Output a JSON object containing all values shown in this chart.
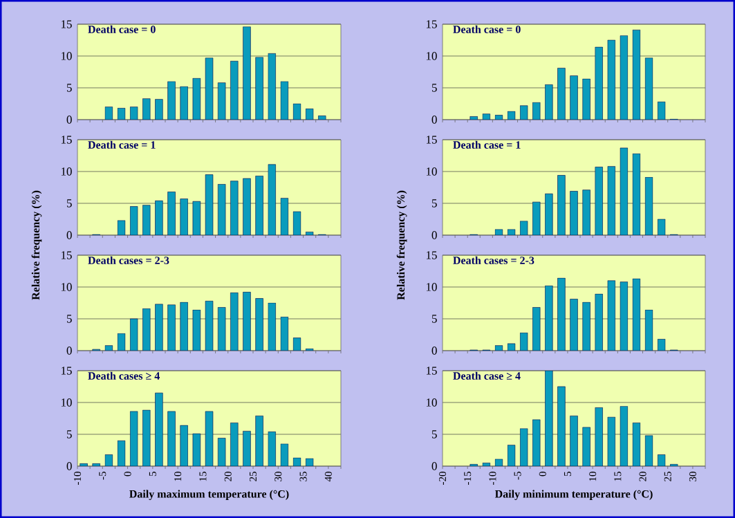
{
  "chart_data": [
    {
      "type": "histogram",
      "title": "Death case = 0",
      "bins": [
        -10,
        -7.5,
        -5,
        -2.5,
        0,
        2.5,
        5,
        7.5,
        10,
        12.5,
        15,
        17.5,
        20,
        22.5,
        25,
        27.5,
        30,
        32.5,
        35,
        37.5,
        40,
        42.5
      ],
      "values": [
        0,
        0,
        2.0,
        1.8,
        2.0,
        3.3,
        3.2,
        6.0,
        5.2,
        6.5,
        9.7,
        5.8,
        9.2,
        14.6,
        9.8,
        10.4,
        6.0,
        2.5,
        1.7,
        0.6,
        0
      ],
      "color": "#0a9cbc",
      "xlim": [
        -10,
        42.5
      ],
      "xticks": [
        -10,
        {
          "value": -7.5,
          "label": null
        },
        -5,
        {
          "value": -2.5,
          "label": null
        },
        0,
        {
          "value": 2.5,
          "label": null
        },
        5,
        {
          "value": 7.5,
          "label": null
        },
        10,
        {
          "value": 12.5,
          "label": null
        },
        15,
        {
          "value": 17.5,
          "label": null
        },
        20,
        {
          "value": 22.5,
          "label": null
        },
        25,
        {
          "value": 27.5,
          "label": null
        },
        30,
        {
          "value": 32.5,
          "label": null
        },
        35,
        {
          "value": 37.5,
          "label": null
        },
        40,
        {
          "value": 42.5,
          "label": null
        }
      ],
      "ylim": [
        0,
        15
      ],
      "yticks": [
        0,
        5,
        10,
        15
      ],
      "grid": "y",
      "tick_labels": "y"
    },
    {
      "type": "histogram",
      "title": "Death case = 0",
      "bins": [
        -20,
        -17.5,
        -15,
        -12.5,
        -10,
        -7.5,
        -5,
        -2.5,
        0,
        2.5,
        5,
        7.5,
        10,
        12.5,
        15,
        17.5,
        20,
        22.5,
        25,
        27.5,
        30,
        32.5
      ],
      "values": [
        0,
        0,
        0.5,
        0.9,
        0.7,
        1.3,
        2.2,
        2.7,
        5.5,
        8.1,
        6.9,
        6.4,
        11.4,
        12.5,
        13.2,
        14.1,
        9.7,
        2.8,
        0.1,
        0,
        0
      ],
      "color": "#0a9cbc",
      "xlim": [
        -20,
        32.5
      ],
      "xticks": [
        -20,
        {
          "value": -17.5,
          "label": null
        },
        -15,
        {
          "value": -12.5,
          "label": null
        },
        -10,
        {
          "value": -7.5,
          "label": null
        },
        -5,
        {
          "value": -2.5,
          "label": null
        },
        0,
        {
          "value": 2.5,
          "label": null
        },
        5,
        {
          "value": 7.5,
          "label": null
        },
        10,
        {
          "value": 12.5,
          "label": null
        },
        15,
        {
          "value": 17.5,
          "label": null
        },
        20,
        {
          "value": 22.5,
          "label": null
        },
        25,
        {
          "value": 27.5,
          "label": null
        },
        30,
        {
          "value": 32.5,
          "label": null
        }
      ],
      "ylim": [
        0,
        15
      ],
      "yticks": [
        0,
        5,
        10,
        15
      ],
      "grid": "y",
      "tick_labels": "y"
    },
    {
      "type": "histogram",
      "title": "Death case = 1",
      "ylabel": "Relative frequency (%)",
      "bins": [
        -10,
        -7.5,
        -5,
        -2.5,
        0,
        2.5,
        5,
        7.5,
        10,
        12.5,
        15,
        17.5,
        20,
        22.5,
        25,
        27.5,
        30,
        32.5,
        35,
        37.5,
        40,
        42.5
      ],
      "values": [
        0,
        0.1,
        0,
        2.3,
        4.5,
        4.7,
        5.4,
        6.8,
        5.7,
        5.3,
        9.5,
        8.0,
        8.5,
        8.9,
        9.3,
        11.1,
        5.8,
        3.7,
        0.5,
        0.1,
        0
      ],
      "color": "#0a9cbc",
      "xlim": [
        -10,
        42.5
      ],
      "xticks": [
        -10,
        {
          "value": -7.5,
          "label": null
        },
        -5,
        {
          "value": -2.5,
          "label": null
        },
        0,
        {
          "value": 2.5,
          "label": null
        },
        5,
        {
          "value": 7.5,
          "label": null
        },
        10,
        {
          "value": 12.5,
          "label": null
        },
        15,
        {
          "value": 17.5,
          "label": null
        },
        20,
        {
          "value": 22.5,
          "label": null
        },
        25,
        {
          "value": 27.5,
          "label": null
        },
        30,
        {
          "value": 32.5,
          "label": null
        },
        35,
        {
          "value": 37.5,
          "label": null
        },
        40,
        {
          "value": 42.5,
          "label": null
        }
      ],
      "ylim": [
        0,
        15
      ],
      "yticks": [
        0,
        5,
        10,
        15
      ],
      "grid": "y",
      "tick_labels": "y"
    },
    {
      "type": "histogram",
      "title": "Death case = 1",
      "ylabel": "Relative frequency (%)",
      "bins": [
        -20,
        -17.5,
        -15,
        -12.5,
        -10,
        -7.5,
        -5,
        -2.5,
        0,
        2.5,
        5,
        7.5,
        10,
        12.5,
        15,
        17.5,
        20,
        22.5,
        25,
        27.5,
        30,
        32.5
      ],
      "values": [
        0,
        0,
        0.1,
        0,
        0.9,
        0.9,
        2.2,
        5.2,
        6.5,
        9.4,
        6.9,
        7.1,
        10.7,
        10.8,
        13.7,
        12.8,
        9.1,
        2.5,
        0.1,
        0,
        0
      ],
      "color": "#0a9cbc",
      "xlim": [
        -20,
        32.5
      ],
      "xticks": [
        -20,
        {
          "value": -17.5,
          "label": null
        },
        -15,
        {
          "value": -12.5,
          "label": null
        },
        -10,
        {
          "value": -7.5,
          "label": null
        },
        -5,
        {
          "value": -2.5,
          "label": null
        },
        0,
        {
          "value": 2.5,
          "label": null
        },
        5,
        {
          "value": 7.5,
          "label": null
        },
        10,
        {
          "value": 12.5,
          "label": null
        },
        15,
        {
          "value": 17.5,
          "label": null
        },
        20,
        {
          "value": 22.5,
          "label": null
        },
        25,
        {
          "value": 27.5,
          "label": null
        },
        30,
        {
          "value": 32.5,
          "label": null
        }
      ],
      "ylim": [
        0,
        15
      ],
      "yticks": [
        0,
        5,
        10,
        15
      ],
      "grid": "y",
      "tick_labels": "y"
    },
    {
      "type": "histogram",
      "title": "Death cases = 2-3",
      "bins": [
        -10,
        -7.5,
        -5,
        -2.5,
        0,
        2.5,
        5,
        7.5,
        10,
        12.5,
        15,
        17.5,
        20,
        22.5,
        25,
        27.5,
        30,
        32.5,
        35,
        37.5,
        40,
        42.5
      ],
      "values": [
        0,
        0.2,
        0.8,
        2.7,
        5.0,
        6.6,
        7.3,
        7.2,
        7.6,
        6.4,
        7.8,
        6.8,
        9.1,
        9.2,
        8.2,
        7.5,
        5.3,
        2.0,
        0.3,
        0,
        0
      ],
      "color": "#0a9cbc",
      "xlim": [
        -10,
        42.5
      ],
      "xticks": [
        -10,
        {
          "value": -7.5,
          "label": null
        },
        -5,
        {
          "value": -2.5,
          "label": null
        },
        0,
        {
          "value": 2.5,
          "label": null
        },
        5,
        {
          "value": 7.5,
          "label": null
        },
        10,
        {
          "value": 12.5,
          "label": null
        },
        15,
        {
          "value": 17.5,
          "label": null
        },
        20,
        {
          "value": 22.5,
          "label": null
        },
        25,
        {
          "value": 27.5,
          "label": null
        },
        30,
        {
          "value": 32.5,
          "label": null
        },
        35,
        {
          "value": 37.5,
          "label": null
        },
        40,
        {
          "value": 42.5,
          "label": null
        }
      ],
      "ylim": [
        0,
        15
      ],
      "yticks": [
        0,
        5,
        10,
        15
      ],
      "grid": "y",
      "tick_labels": "y"
    },
    {
      "type": "histogram",
      "title": "Death cases = 2-3",
      "bins": [
        -20,
        -17.5,
        -15,
        -12.5,
        -10,
        -7.5,
        -5,
        -2.5,
        0,
        2.5,
        5,
        7.5,
        10,
        12.5,
        15,
        17.5,
        20,
        22.5,
        25,
        27.5,
        30,
        32.5
      ],
      "values": [
        0,
        0,
        0.1,
        0.1,
        0.8,
        1.1,
        2.8,
        6.8,
        10.2,
        11.4,
        8.1,
        7.6,
        8.9,
        11.0,
        10.8,
        11.3,
        6.4,
        1.8,
        0.1,
        0,
        0
      ],
      "color": "#0a9cbc",
      "xlim": [
        -20,
        32.5
      ],
      "xticks": [
        -20,
        {
          "value": -17.5,
          "label": null
        },
        -15,
        {
          "value": -12.5,
          "label": null
        },
        -10,
        {
          "value": -7.5,
          "label": null
        },
        -5,
        {
          "value": -2.5,
          "label": null
        },
        0,
        {
          "value": 2.5,
          "label": null
        },
        5,
        {
          "value": 7.5,
          "label": null
        },
        10,
        {
          "value": 12.5,
          "label": null
        },
        15,
        {
          "value": 17.5,
          "label": null
        },
        20,
        {
          "value": 22.5,
          "label": null
        },
        25,
        {
          "value": 27.5,
          "label": null
        },
        30,
        {
          "value": 32.5,
          "label": null
        }
      ],
      "ylim": [
        0,
        15
      ],
      "yticks": [
        0,
        5,
        10,
        15
      ],
      "grid": "y",
      "tick_labels": "y"
    },
    {
      "type": "histogram",
      "title": "Death cases ≥ 4",
      "xlabel": "Daily maximum temperature (°C)",
      "bins": [
        -10,
        -7.5,
        -5,
        -2.5,
        0,
        2.5,
        5,
        7.5,
        10,
        12.5,
        15,
        17.5,
        20,
        22.5,
        25,
        27.5,
        30,
        32.5,
        35,
        37.5,
        40,
        42.5
      ],
      "values": [
        0.4,
        0.4,
        1.8,
        4.0,
        8.6,
        8.8,
        11.5,
        8.6,
        6.4,
        5.1,
        8.6,
        4.4,
        6.8,
        5.5,
        7.9,
        5.4,
        3.5,
        1.3,
        1.2,
        0,
        0
      ],
      "color": "#0a9cbc",
      "xlim": [
        -10,
        42.5
      ],
      "xticks": [
        -10,
        {
          "value": -7.5,
          "label": null
        },
        -5,
        {
          "value": -2.5,
          "label": null
        },
        0,
        {
          "value": 2.5,
          "label": null
        },
        5,
        {
          "value": 7.5,
          "label": null
        },
        10,
        {
          "value": 12.5,
          "label": null
        },
        15,
        {
          "value": 17.5,
          "label": null
        },
        20,
        {
          "value": 22.5,
          "label": null
        },
        25,
        {
          "value": 27.5,
          "label": null
        },
        30,
        {
          "value": 32.5,
          "label": null
        },
        35,
        {
          "value": 37.5,
          "label": null
        },
        40,
        {
          "value": 42.5,
          "label": null
        }
      ],
      "ylim": [
        0,
        15
      ],
      "yticks": [
        0,
        5,
        10,
        15
      ],
      "grid": "y"
    },
    {
      "type": "histogram",
      "title": "Death case ≥ 4",
      "xlabel": "Daily minimum temperature (°C)",
      "bins": [
        -20,
        -17.5,
        -15,
        -12.5,
        -10,
        -7.5,
        -5,
        -2.5,
        0,
        2.5,
        5,
        7.5,
        10,
        12.5,
        15,
        17.5,
        20,
        22.5,
        25,
        27.5,
        30,
        32.5
      ],
      "values": [
        0,
        0,
        0.3,
        0.5,
        1.1,
        3.3,
        5.9,
        7.3,
        15.0,
        12.5,
        7.9,
        6.1,
        9.2,
        7.7,
        9.4,
        6.8,
        4.8,
        1.8,
        0.3,
        0,
        0
      ],
      "color": "#0a9cbc",
      "xlim": [
        -20,
        32.5
      ],
      "xticks": [
        -20,
        {
          "value": -17.5,
          "label": null
        },
        -15,
        {
          "value": -12.5,
          "label": null
        },
        -10,
        {
          "value": -7.5,
          "label": null
        },
        -5,
        {
          "value": -2.5,
          "label": null
        },
        0,
        {
          "value": 2.5,
          "label": null
        },
        5,
        {
          "value": 7.5,
          "label": null
        },
        10,
        {
          "value": 12.5,
          "label": null
        },
        15,
        {
          "value": 17.5,
          "label": null
        },
        20,
        {
          "value": 22.5,
          "label": null
        },
        25,
        {
          "value": 27.5,
          "label": null
        },
        30,
        {
          "value": 32.5,
          "label": null
        }
      ],
      "ylim": [
        0,
        15
      ],
      "yticks": [
        0,
        5,
        10,
        15
      ],
      "grid": "y"
    }
  ]
}
